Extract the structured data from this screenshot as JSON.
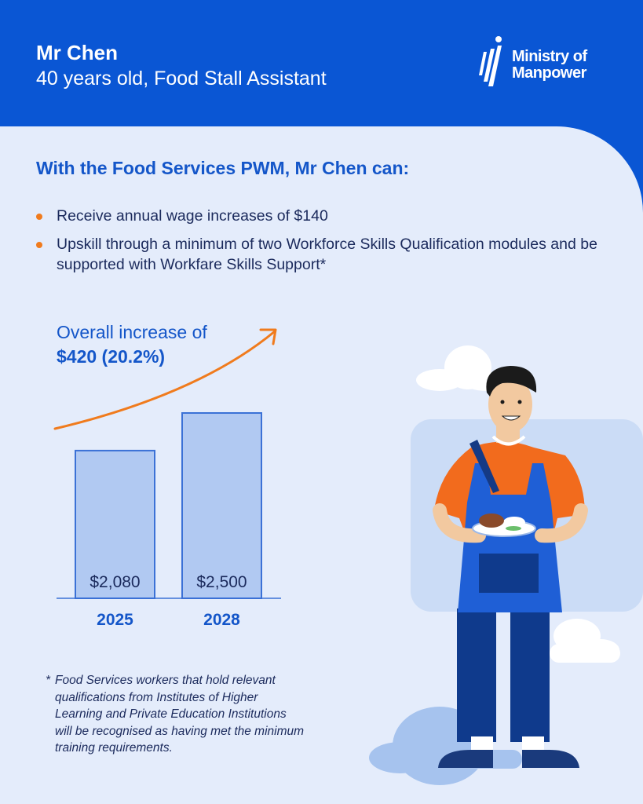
{
  "header": {
    "name": "Mr Chen",
    "subtitle": "40 years old, Food Stall Assistant",
    "logo": {
      "line1": "Ministry of",
      "line2": "Manpower"
    }
  },
  "heading": "With the Food Services PWM, Mr Chen can:",
  "bullets": [
    "Receive annual wage increases of $140",
    "Upskill through a minimum of two Workforce Skills Qualification modules and be supported with Workfare Skills Support*"
  ],
  "increase": {
    "line1": "Overall increase of",
    "line2": "$420 (20.2%)"
  },
  "chart_data": {
    "type": "bar",
    "categories": [
      "2025",
      "2028"
    ],
    "values": [
      2080,
      2500
    ],
    "data_labels": [
      "$2,080",
      "$2,500"
    ],
    "title": "",
    "xlabel": "",
    "ylabel": "",
    "ylim": [
      430,
      2500
    ],
    "grid": false,
    "colors": {
      "bar_fill": "#b1c9f2",
      "bar_border": "#3b71d6",
      "arrow": "#f07b1d"
    }
  },
  "footnote": {
    "marker": "*",
    "text": "Food Services workers that hold relevant qualifications from Institutes of Higher Learning and Private Education Institutions will be recognised as having met the minimum training requirements."
  },
  "colors": {
    "brand_blue": "#0a56d4",
    "background": "#e4ecfb",
    "accent_orange": "#f07b1d",
    "text_dark": "#1b2a5c"
  }
}
